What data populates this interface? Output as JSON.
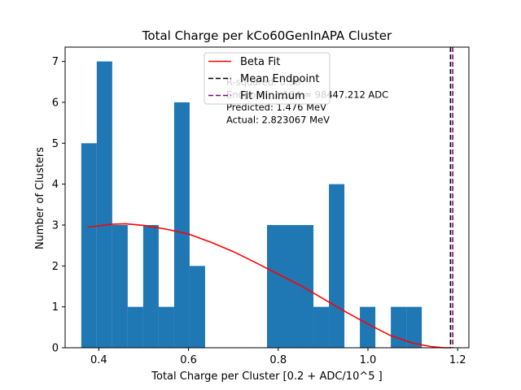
{
  "chart_data": {
    "type": "histogram",
    "title": "Total Charge per kCo60GenInAPA Cluster",
    "xlabel": "Total Charge per Cluster [0.2 + ADC/10^5 ]",
    "ylabel": "Number of Clusters",
    "xlim": [
      0.325,
      1.225
    ],
    "ylim": [
      0,
      7.35
    ],
    "xticks": [
      0.4,
      0.6,
      0.8,
      1.0,
      1.2
    ],
    "xtick_labels": [
      "0.4",
      "0.6",
      "0.8",
      "1.0",
      "1.2"
    ],
    "yticks": [
      0,
      1,
      2,
      3,
      4,
      5,
      6,
      7
    ],
    "ytick_labels": [
      "0",
      "1",
      "2",
      "3",
      "4",
      "5",
      "6",
      "7"
    ],
    "grid": false,
    "legend_position": "top-center",
    "bar_color": "#1f77b4",
    "bins": [
      {
        "x0": 0.361,
        "x1": 0.3955,
        "count": 5
      },
      {
        "x0": 0.3955,
        "x1": 0.43,
        "count": 7
      },
      {
        "x0": 0.43,
        "x1": 0.4645,
        "count": 3
      },
      {
        "x0": 0.4645,
        "x1": 0.499,
        "count": 1
      },
      {
        "x0": 0.499,
        "x1": 0.5335,
        "count": 3
      },
      {
        "x0": 0.5335,
        "x1": 0.568,
        "count": 1
      },
      {
        "x0": 0.568,
        "x1": 0.6025,
        "count": 6
      },
      {
        "x0": 0.6025,
        "x1": 0.637,
        "count": 2
      },
      {
        "x0": 0.637,
        "x1": 0.6715,
        "count": 0
      },
      {
        "x0": 0.6715,
        "x1": 0.706,
        "count": 0
      },
      {
        "x0": 0.706,
        "x1": 0.7405,
        "count": 0
      },
      {
        "x0": 0.7405,
        "x1": 0.775,
        "count": 0
      },
      {
        "x0": 0.775,
        "x1": 0.8095,
        "count": 3
      },
      {
        "x0": 0.8095,
        "x1": 0.844,
        "count": 3
      },
      {
        "x0": 0.844,
        "x1": 0.8785,
        "count": 3
      },
      {
        "x0": 0.8785,
        "x1": 0.913,
        "count": 1
      },
      {
        "x0": 0.913,
        "x1": 0.9475,
        "count": 4
      },
      {
        "x0": 0.9475,
        "x1": 0.982,
        "count": 0
      },
      {
        "x0": 0.982,
        "x1": 1.0165,
        "count": 1
      },
      {
        "x0": 1.0165,
        "x1": 1.051,
        "count": 0
      },
      {
        "x0": 1.051,
        "x1": 1.0855,
        "count": 1
      },
      {
        "x0": 1.0855,
        "x1": 1.12,
        "count": 1
      }
    ],
    "fit_curve": {
      "name": "Beta Fit",
      "color": "#ff0000",
      "x": [
        0.375,
        0.4,
        0.43,
        0.46,
        0.5,
        0.55,
        0.6,
        0.65,
        0.7,
        0.75,
        0.8,
        0.85,
        0.9,
        0.95,
        1.0,
        1.05,
        1.1,
        1.14,
        1.17,
        1.185
      ],
      "y": [
        2.95,
        2.98,
        3.02,
        3.03,
        2.99,
        2.9,
        2.78,
        2.58,
        2.35,
        2.08,
        1.8,
        1.52,
        1.2,
        0.88,
        0.58,
        0.3,
        0.11,
        0.03,
        0.0,
        0.0
      ]
    },
    "vlines": [
      {
        "name": "Mean Endpoint",
        "x": 1.184,
        "color": "#000000",
        "style": "dashed"
      },
      {
        "name": "Fit Minimum",
        "x": 1.189,
        "color": "#800080",
        "style": "dashed"
      }
    ],
    "annotations": [
      "R-squared: 0.38",
      "Endpoint: 1.184 = 98447.212 ADC",
      "Predicted: 1.476 MeV",
      "Actual: 2.823067 MeV"
    ]
  }
}
